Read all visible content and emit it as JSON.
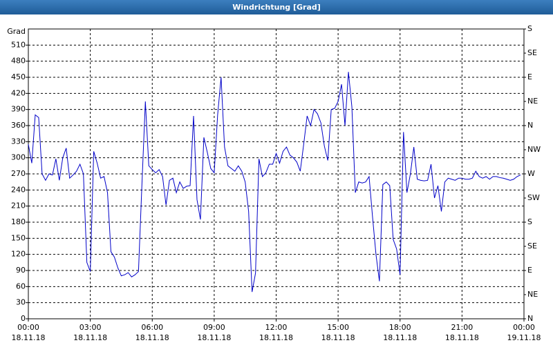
{
  "chart_data": {
    "type": "line",
    "title": "Windrichtung [Grad]",
    "y_unit_label": "Grad",
    "x": [
      0,
      10,
      20,
      30,
      40,
      50,
      60,
      70,
      80,
      90,
      100,
      110,
      120,
      130,
      140,
      150,
      160,
      170,
      180,
      190,
      200,
      210,
      220,
      230,
      240,
      250,
      260,
      270,
      280,
      290,
      300,
      310,
      320,
      330,
      340,
      350,
      360,
      370,
      380,
      390,
      400,
      410,
      420,
      430,
      440,
      450,
      460,
      470,
      480,
      490,
      500,
      510,
      520,
      530,
      540,
      550,
      560,
      570,
      580,
      590,
      600,
      610,
      620,
      630,
      640,
      650,
      660,
      670,
      680,
      690,
      700,
      710,
      720,
      730,
      740,
      750,
      760,
      770,
      780,
      790,
      800,
      810,
      820,
      830,
      840,
      850,
      860,
      870,
      880,
      890,
      900,
      910,
      920,
      930,
      940,
      950,
      960,
      970,
      980,
      990,
      1000,
      1010,
      1020,
      1030,
      1040,
      1050,
      1060,
      1070,
      1080,
      1090,
      1100,
      1110,
      1120,
      1130,
      1140,
      1150,
      1160,
      1170,
      1180,
      1190,
      1200,
      1210,
      1220,
      1230,
      1240,
      1250,
      1260,
      1270,
      1280,
      1290,
      1300,
      1310,
      1320,
      1330,
      1340,
      1350,
      1360,
      1370,
      1380,
      1390,
      1400,
      1410,
      1420,
      1430
    ],
    "series": [
      {
        "color": "#0000c8",
        "values": [
          325,
          290,
          380,
          375,
          270,
          258,
          270,
          268,
          298,
          258,
          300,
          318,
          262,
          268,
          275,
          288,
          270,
          105,
          88,
          312,
          290,
          262,
          265,
          235,
          125,
          115,
          95,
          80,
          82,
          86,
          78,
          82,
          88,
          250,
          405,
          285,
          278,
          272,
          278,
          265,
          212,
          258,
          262,
          235,
          255,
          243,
          247,
          248,
          378,
          222,
          185,
          338,
          310,
          280,
          272,
          380,
          450,
          320,
          285,
          280,
          275,
          285,
          275,
          255,
          200,
          50,
          85,
          298,
          265,
          272,
          288,
          288,
          308,
          290,
          312,
          320,
          305,
          300,
          292,
          275,
          325,
          378,
          360,
          390,
          382,
          365,
          322,
          295,
          390,
          392,
          405,
          437,
          360,
          460,
          395,
          235,
          255,
          253,
          255,
          265,
          190,
          120,
          70,
          250,
          255,
          248,
          148,
          130,
          82,
          348,
          235,
          270,
          320,
          260,
          258,
          257,
          258,
          288,
          225,
          248,
          200,
          255,
          262,
          260,
          258,
          262,
          262,
          260,
          260,
          262,
          275,
          265,
          262,
          265,
          260,
          265,
          265,
          263,
          262,
          260,
          258,
          260,
          265,
          268
        ]
      }
    ],
    "xlim": [
      0,
      1440
    ],
    "xticks": [
      {
        "value": 0,
        "label": "00:00"
      },
      {
        "value": 180,
        "label": "03:00"
      },
      {
        "value": 360,
        "label": "06:00"
      },
      {
        "value": 540,
        "label": "09:00"
      },
      {
        "value": 720,
        "label": "12:00"
      },
      {
        "value": 900,
        "label": "15:00"
      },
      {
        "value": 1080,
        "label": "18:00"
      },
      {
        "value": 1260,
        "label": "21:00"
      },
      {
        "value": 1440,
        "label": "00:00"
      }
    ],
    "xtick_dates": [
      "18.11.18",
      "18.11.18",
      "18.11.18",
      "18.11.18",
      "18.11.18",
      "18.11.18",
      "18.11.18",
      "18.11.18",
      "19.11.18"
    ],
    "ylim": [
      0,
      540
    ],
    "yticks": [
      0,
      30,
      60,
      90,
      120,
      150,
      180,
      210,
      240,
      270,
      300,
      330,
      360,
      390,
      420,
      450,
      480,
      510
    ],
    "y2lim": [
      0,
      540
    ],
    "y2ticks": [
      {
        "value": 0,
        "label": "N"
      },
      {
        "value": 45,
        "label": "NE"
      },
      {
        "value": 90,
        "label": "E"
      },
      {
        "value": 135,
        "label": "SE"
      },
      {
        "value": 180,
        "label": "S"
      },
      {
        "value": 225,
        "label": "SW"
      },
      {
        "value": 270,
        "label": "W"
      },
      {
        "value": 315,
        "label": "NW"
      },
      {
        "value": 360,
        "label": "N"
      },
      {
        "value": 405,
        "label": "NE"
      },
      {
        "value": 450,
        "label": "E"
      },
      {
        "value": 495,
        "label": "SE"
      },
      {
        "value": 540,
        "label": "S"
      }
    ],
    "grid": true
  }
}
